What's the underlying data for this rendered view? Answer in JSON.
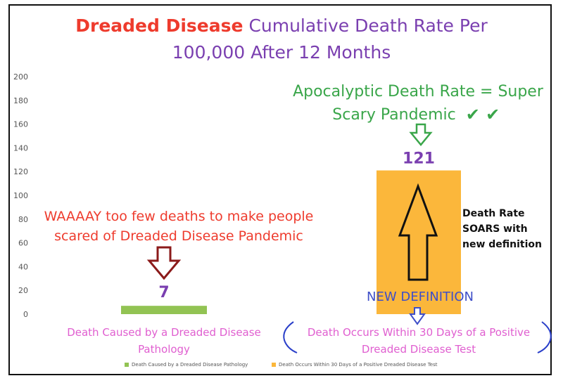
{
  "chart_data": {
    "type": "bar",
    "title": "Dreaded Disease Cumulative Death Rate Per 100,000 After 12 Months",
    "title_parts": {
      "emphasis": "Dreaded Disease",
      "line1_rest": "Cumulative Death Rate Per",
      "line2": "100,000 After 12 Months"
    },
    "categories": [
      "Death Caused by a Dreaded Disease Pathology",
      "Death Occurs Within 30 Days of a Positive Dreaded Disease Test"
    ],
    "category_lines": [
      [
        "Death Caused by a Dreaded Disease",
        "Pathology"
      ],
      [
        "Death Occurs Within 30 Days of a Positive",
        "Dreaded Disease Test"
      ]
    ],
    "values": [
      7,
      121
    ],
    "value_labels": [
      "7",
      "121"
    ],
    "colors": [
      "#92c353",
      "#fbb73b"
    ],
    "legend": [
      "Death Caused by a Dreaded Disease Pathology",
      "Death Occurs Within 30 Days of a Positive Dreaded Disease Test"
    ],
    "legend_position": "bottom",
    "ylim": [
      0,
      200
    ],
    "yticks": [
      "0",
      "20",
      "40",
      "60",
      "80",
      "100",
      "120",
      "140",
      "160",
      "180",
      "200"
    ],
    "grid": false,
    "annotations": {
      "left_text": [
        "WAAAAY too few deaths to make people",
        "scared of Dreaded Disease Pandemic"
      ],
      "top_right_text": [
        "Apocalyptic Death Rate = Super",
        "Scary Pandemic"
      ],
      "checkmarks": "✔ ✔",
      "side_text": [
        "Death Rate",
        "SOARS with",
        "new definition"
      ],
      "new_definition": "NEW DEFINITION"
    }
  }
}
